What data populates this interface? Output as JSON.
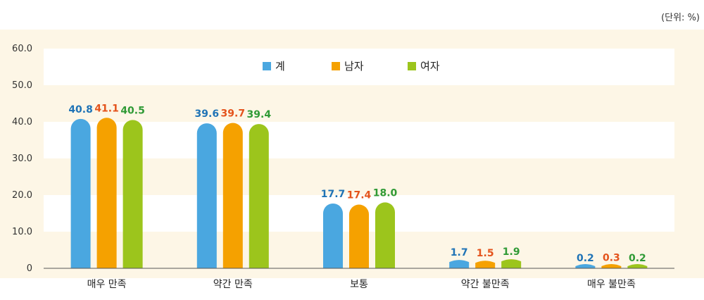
{
  "unit_label": "(단위: %)",
  "chart_data": {
    "type": "bar",
    "categories": [
      "매우 만족",
      "약간 만족",
      "보통",
      "약간 불만족",
      "매우 불만족"
    ],
    "series": [
      {
        "name": "계",
        "values": [
          40.8,
          39.6,
          17.7,
          1.7,
          0.2
        ],
        "color": "#4aa7e0",
        "label_color": "#1f73b6"
      },
      {
        "name": "남자",
        "values": [
          41.1,
          39.7,
          17.4,
          1.5,
          0.3
        ],
        "color": "#f5a100",
        "label_color": "#e4531c"
      },
      {
        "name": "여자",
        "values": [
          40.5,
          39.4,
          18.0,
          1.9,
          0.2
        ],
        "color": "#9cc51c",
        "label_color": "#2f9a35"
      }
    ],
    "value_labels": [
      [
        "40.8",
        "39.6",
        "17.7",
        "1.7",
        "0.2"
      ],
      [
        "41.1",
        "39.7",
        "17.4",
        "1.5",
        "0.3"
      ],
      [
        "40.5",
        "39.4",
        "18.0",
        "1.9",
        "0.2"
      ]
    ],
    "yticks": [
      "0",
      "10.0",
      "20.0",
      "30.0",
      "40.0",
      "50.0",
      "60.0"
    ],
    "ylim": [
      0,
      60
    ],
    "title": "",
    "xlabel": "",
    "ylabel": "",
    "legend_position": "top-center",
    "grid": "alternating horizontal bands",
    "colors": {
      "band_light": "#fdf6e6",
      "band_white": "#ffffff",
      "axis": "#555555"
    }
  }
}
